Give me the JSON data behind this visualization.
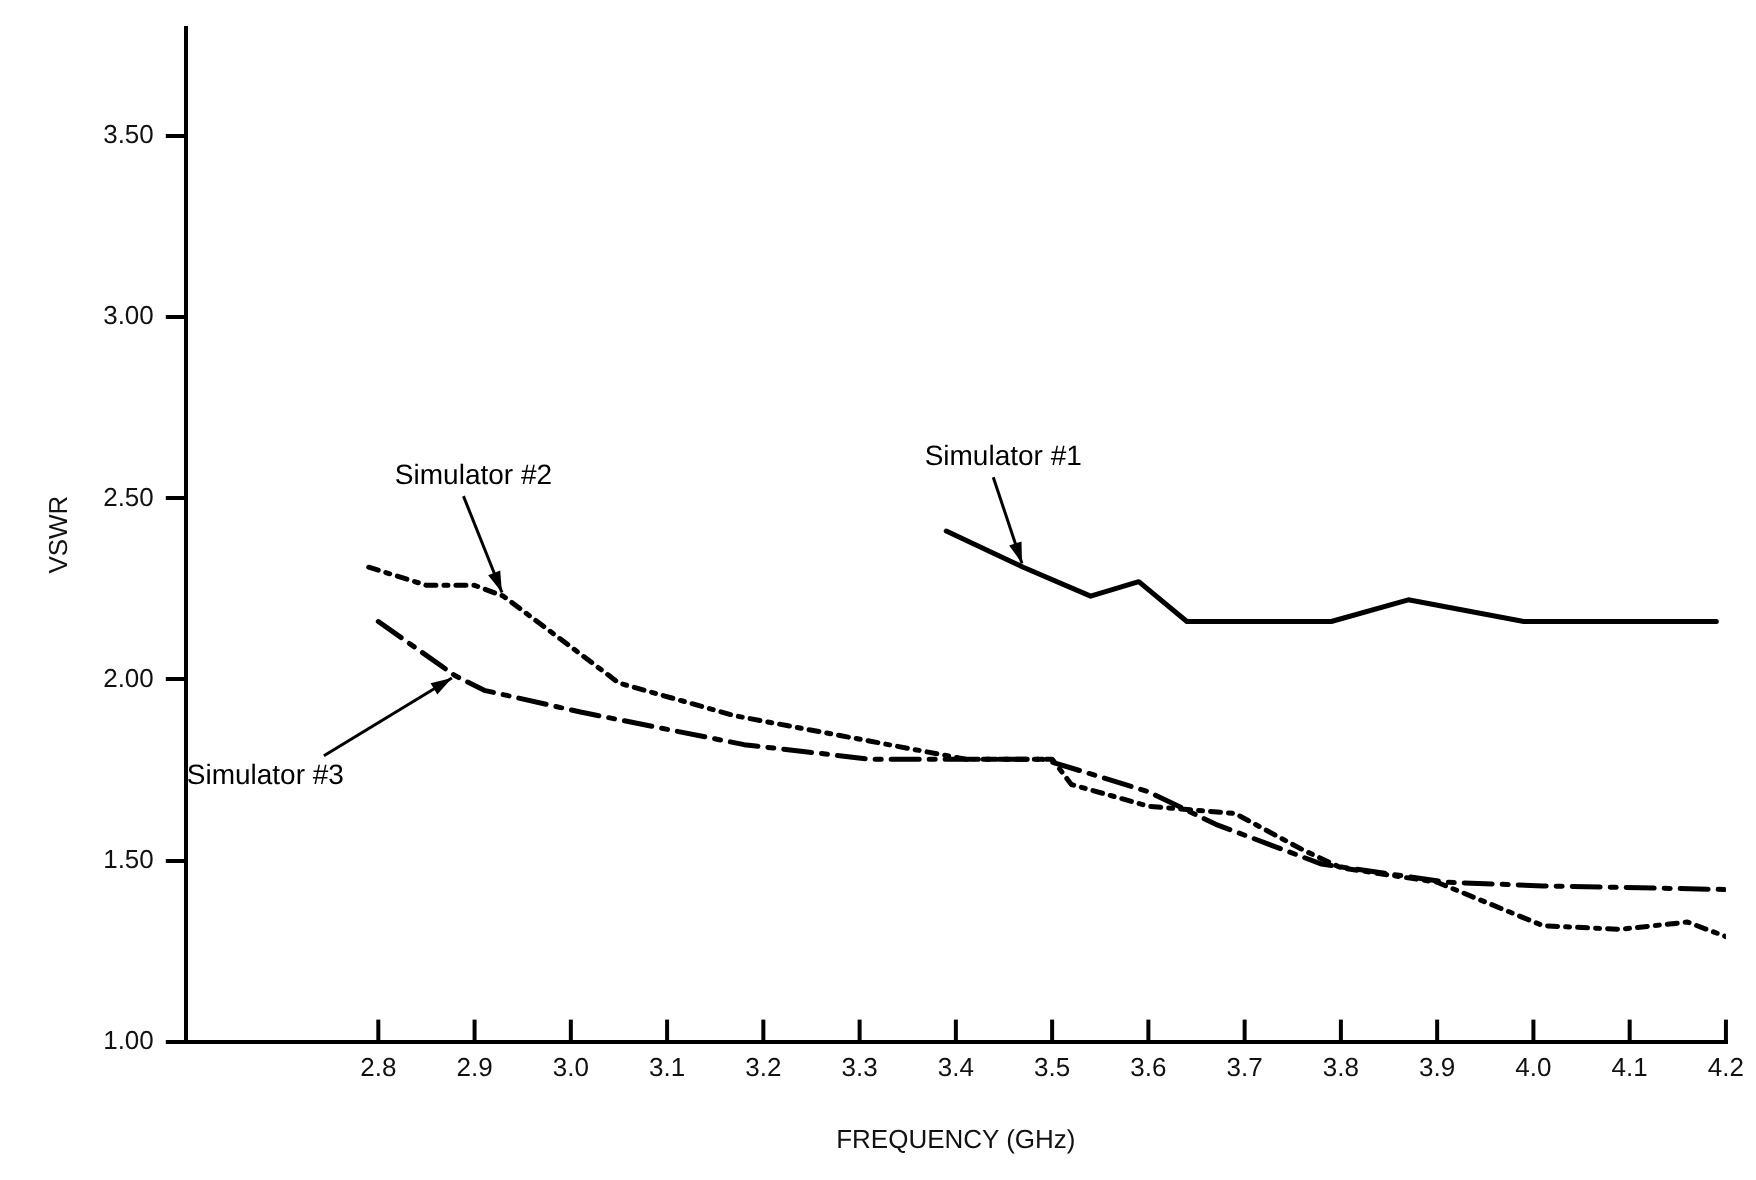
{
  "chart_data": {
    "type": "line",
    "xlabel": "FREQUENCY (GHz)",
    "ylabel": "VSWR",
    "xlim": [
      2.6,
      4.2
    ],
    "ylim": [
      1,
      3.8
    ],
    "xticks": [
      2.8,
      2.9,
      {
        "value": 3,
        "label": "3.0"
      },
      3.1,
      3.2,
      3.3,
      3.4,
      3.5,
      3.6,
      3.7,
      3.8,
      3.9,
      {
        "value": 4,
        "label": "4.0"
      },
      4.1,
      4.2
    ],
    "yticks": [
      {
        "value": 1,
        "label": "1.00"
      },
      {
        "value": 1.5,
        "label": "1.50"
      },
      {
        "value": 2,
        "label": "2.00"
      },
      {
        "value": 2.5,
        "label": "2.50"
      },
      {
        "value": 3,
        "label": "3.00"
      },
      {
        "value": 3.5,
        "label": "3.50"
      }
    ],
    "grid": false,
    "legend": false,
    "marker": "none",
    "series": [
      {
        "name": "Simulator #1",
        "color": "#000000",
        "line_style": "solid",
        "x": [
          3.39,
          3.47,
          3.54,
          3.59,
          3.64,
          3.79,
          3.87,
          3.99,
          4.19
        ],
        "values": [
          2.41,
          2.31,
          2.23,
          2.27,
          2.16,
          2.16,
          2.22,
          2.16,
          2.16
        ]
      },
      {
        "name": "Simulator #2",
        "color": "#000000",
        "line_style": "dotted",
        "x": [
          2.79,
          2.85,
          2.9,
          2.93,
          2.99,
          3.05,
          3.17,
          3.31,
          3.41,
          3.5,
          3.52,
          3.6,
          3.69,
          3.76,
          3.8,
          3.9,
          4.01,
          4.09,
          4.16,
          4.2
        ],
        "values": [
          2.31,
          2.26,
          2.26,
          2.23,
          2.11,
          1.99,
          1.9,
          1.83,
          1.78,
          1.78,
          1.71,
          1.65,
          1.63,
          1.53,
          1.48,
          1.44,
          1.32,
          1.31,
          1.33,
          1.29
        ]
      },
      {
        "name": "Simulator #3",
        "color": "#000000",
        "line_style": "dashed",
        "x": [
          2.8,
          2.88,
          2.91,
          3.01,
          3.18,
          3.31,
          3.39,
          3.49,
          3.6,
          3.67,
          3.73,
          3.78,
          3.91,
          4.01,
          4.2
        ],
        "values": [
          2.16,
          2.01,
          1.97,
          1.91,
          1.82,
          1.78,
          1.78,
          1.78,
          1.69,
          1.6,
          1.54,
          1.49,
          1.44,
          1.43,
          1.42
        ]
      }
    ]
  }
}
